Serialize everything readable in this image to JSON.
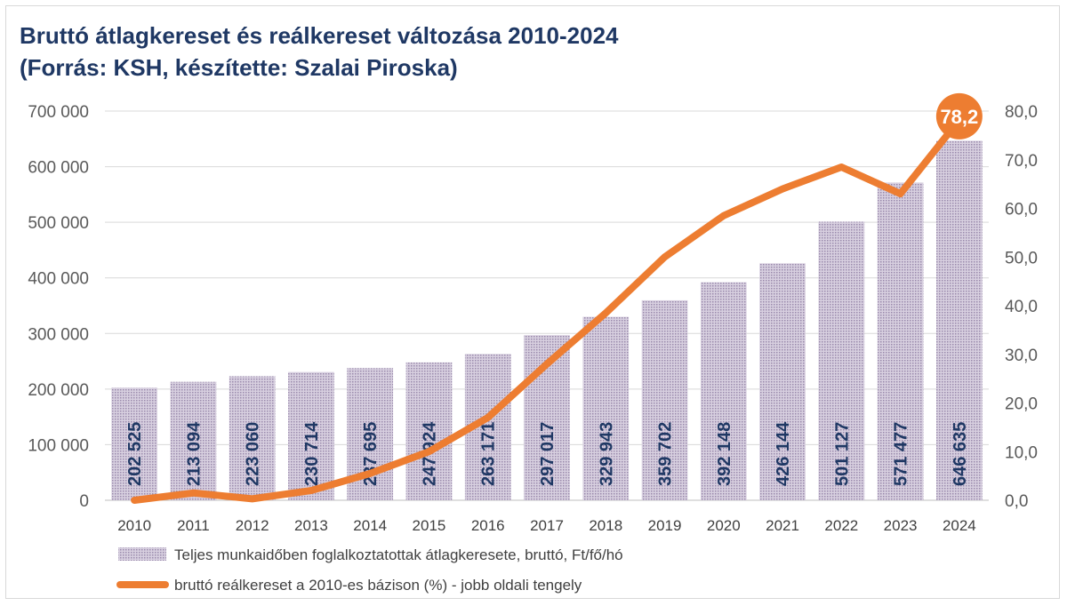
{
  "chart_data": {
    "type": "bar",
    "title": "Bruttó átlagkereset és reálkereset változása 2010-2024",
    "subtitle": "(Forrás: KSH, készítette: Szalai Piroska)",
    "categories": [
      "2010",
      "2011",
      "2012",
      "2013",
      "2014",
      "2015",
      "2016",
      "2017",
      "2018",
      "2019",
      "2020",
      "2021",
      "2022",
      "2023",
      "2024"
    ],
    "series": [
      {
        "name": "Teljes munkaidőben foglalkoztatottak átlagkeresete, bruttó, Ft/fő/hó",
        "type": "bar",
        "axis": "left",
        "values": [
          202525,
          213094,
          223060,
          230714,
          237695,
          247924,
          263171,
          297017,
          329943,
          359702,
          392148,
          426144,
          501127,
          571477,
          646635
        ],
        "labels": [
          "202 525",
          "213 094",
          "223 060",
          "230 714",
          "237 695",
          "247 924",
          "263 171",
          "297 017",
          "329 943",
          "359 702",
          "392 148",
          "426 144",
          "501 127",
          "571 477",
          "646 635"
        ]
      },
      {
        "name": "bruttó reálkereset a 2010-es bázison (%) - jobb oldali tengely",
        "type": "line",
        "axis": "right",
        "values": [
          0.0,
          1.5,
          0.3,
          2.0,
          5.5,
          10.0,
          17.0,
          28.0,
          38.5,
          50.0,
          58.5,
          64.0,
          68.5,
          63.0,
          78.2
        ],
        "highlight_label": "78,2"
      }
    ],
    "y_left": {
      "ylim": [
        0,
        700000
      ],
      "ticks": [
        "0",
        "100 000",
        "200 000",
        "300 000",
        "400 000",
        "500 000",
        "600 000",
        "700 000"
      ]
    },
    "y_right": {
      "ylim": [
        0,
        80
      ],
      "ticks": [
        "0,0",
        "10,0",
        "20,0",
        "30,0",
        "40,0",
        "50,0",
        "60,0",
        "70,0",
        "80,0"
      ]
    },
    "grid": true,
    "legend_position": "bottom-left",
    "colors": {
      "bar": "#c9bfd4",
      "bar_dot": "#9a8aac",
      "line": "#ed7d31",
      "bar_label": "#1f3864",
      "title": "#1f3864"
    }
  }
}
